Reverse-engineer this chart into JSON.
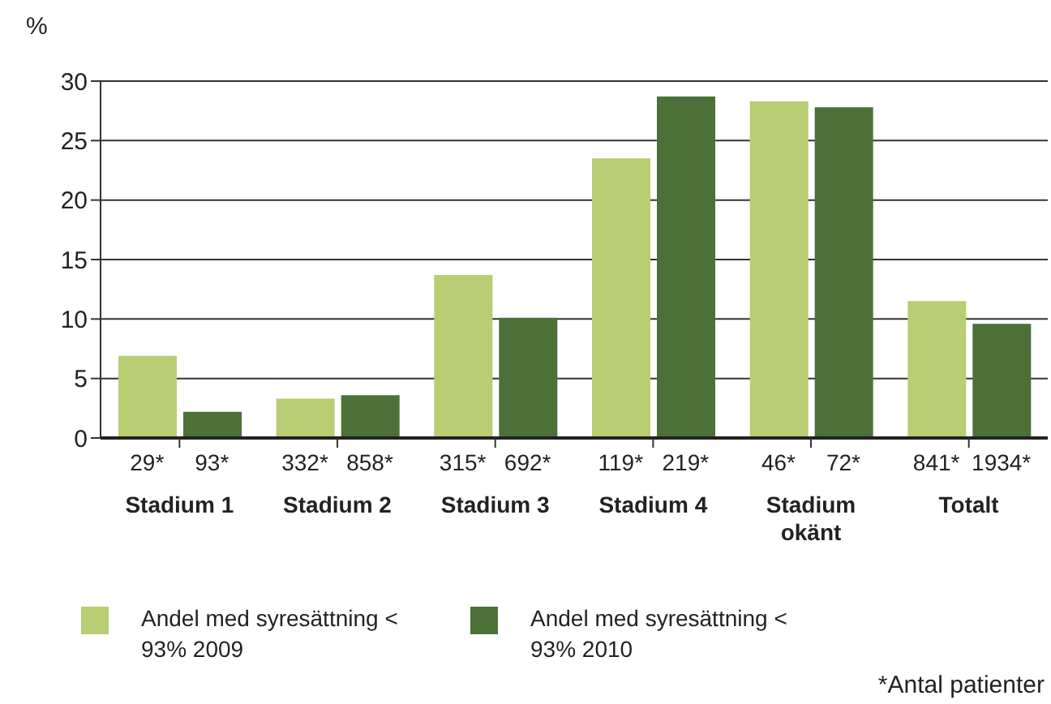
{
  "chart_data": {
    "type": "bar",
    "ylabel": "%",
    "categories": [
      "Stadium 1",
      "Stadium 2",
      "Stadium 3",
      "Stadium 4",
      "Stadium okänt",
      "Totalt"
    ],
    "series": [
      {
        "name": "Andel med syresättning < 93% 2009",
        "color": "#b9cd73",
        "values": [
          6.9,
          3.3,
          13.7,
          23.5,
          28.3,
          11.5
        ]
      },
      {
        "name": "Andel med syresättning < 93% 2010",
        "color": "#4b7038",
        "values": [
          2.2,
          3.6,
          10.1,
          28.7,
          27.8,
          9.6
        ]
      }
    ],
    "ylim": [
      0,
      30
    ],
    "yticks": [
      0,
      5,
      10,
      15,
      20,
      25,
      30
    ],
    "grid": "y",
    "legend": "bottom",
    "annotations": [
      "29*",
      "93*",
      "332*",
      "858*",
      "315*",
      "692*",
      "119*",
      "219*",
      "46*",
      "72*",
      "841*",
      "1934*",
      "*Antal patienter"
    ]
  }
}
